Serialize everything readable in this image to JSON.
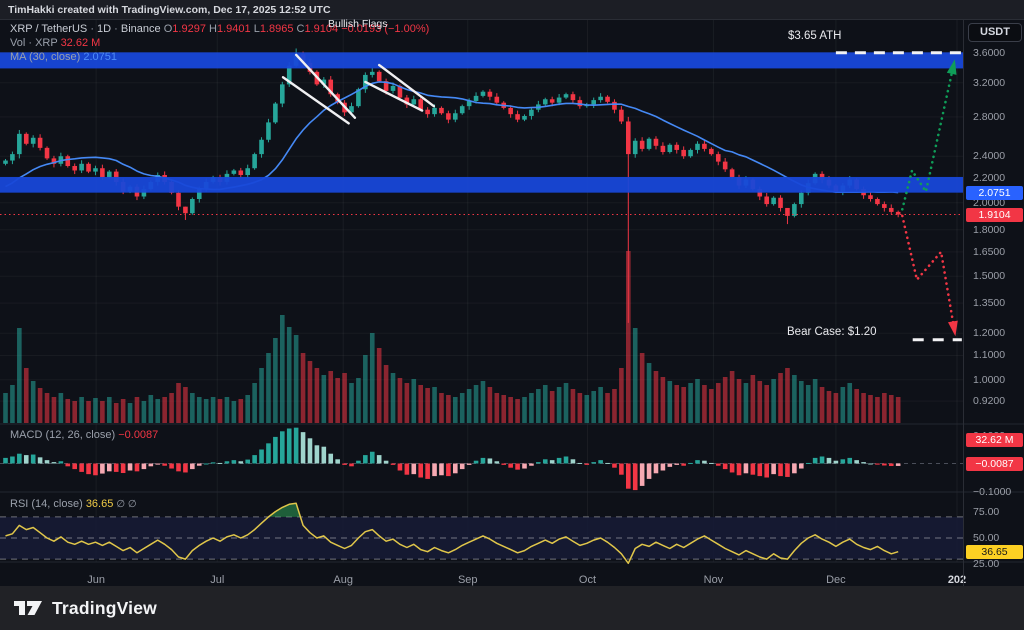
{
  "header": {
    "attribution": "TimHakki created with TradingView.com, Dec 17, 2025 12:52 UTC"
  },
  "legend": {
    "symbol": "XRP / TetherUS",
    "sep1": "·",
    "interval": "1D",
    "sep2": "·",
    "exchange": "Binance",
    "o_label": "O",
    "o": "1.9297",
    "h_label": "H",
    "h": "1.9401",
    "l_label": "L",
    "l": "1.8965",
    "c_label": "C",
    "c": "1.9104",
    "change": "−0.0193 (−1.00%)",
    "vol_label": "Vol · XRP",
    "vol_value": "32.62 M",
    "ma_label": "MA (30, close)",
    "ma_value": "2.0751"
  },
  "annotations": {
    "bullish_flags": "Bullish Flags",
    "ath_label": "$3.65 ATH",
    "bear_label": "Bear Case: $1.20"
  },
  "axis": {
    "currency_button": "USDT",
    "price_ticks": [
      "3.6000",
      "3.2000",
      "2.8000",
      "2.4000",
      "2.2000",
      "2.0000",
      "1.8000",
      "1.6500",
      "1.5000",
      "1.3500",
      "1.2000",
      "1.1000",
      "1.0000",
      "0.9200"
    ],
    "macd_tick_top": "0.1000",
    "macd_tick_bottom": "−0.1000",
    "rsi_ticks": [
      "75.00",
      "50.00",
      "25.00"
    ],
    "chips": {
      "ma": "2.0751",
      "last": "1.9104",
      "vol": "32.62 M",
      "macd": "−0.0087",
      "rsi": "36.65"
    }
  },
  "time_axis": {
    "months": [
      "Jun",
      "Jul",
      "Aug",
      "Sep",
      "Oct",
      "Nov",
      "Dec"
    ],
    "year_partial": "202"
  },
  "panes": {
    "macd_legend": "MACD (12, 26, close)",
    "macd_value": "−0.0087",
    "rsi_legend": "RSI (14, close)",
    "rsi_value": "36.65",
    "rsi_icons": "∅ ∅"
  },
  "footer": {
    "brand": "TradingView"
  },
  "colors": {
    "up": "#26a69a",
    "down": "#f23645",
    "ma_line": "#4589f5",
    "zone_blue": "#1848d8",
    "proj_up": "#0f9d58",
    "proj_down": "#f23645",
    "rsi_line": "#e0c64a",
    "chip_ma": "#2962ff",
    "chip_red": "#f23645",
    "chip_yellow": "#fdd023",
    "macd_pos_grow": "#26a69a",
    "macd_pos_fall": "#9fd4cc",
    "macd_neg_fall": "#f23645",
    "macd_neg_grow": "#f6a9b2"
  },
  "chart_data": {
    "type": "candlestick",
    "title": "XRP / TetherUS · 1D · Binance",
    "x_range": "2025-05-10 to 2025-12-17 (approximated at ~1.7-day candle resolution)",
    "y_scale": "log",
    "ylim": [
      0.88,
      3.75
    ],
    "last": {
      "open": 1.9297,
      "high": 1.9401,
      "low": 1.8965,
      "close": 1.9104,
      "change": -0.0193,
      "change_pct": -1.0,
      "volume": "32.62M",
      "ma30": 2.0751,
      "macd_hist": -0.0087,
      "rsi14": 36.65
    },
    "closes": [
      2.36,
      2.42,
      2.62,
      2.52,
      2.58,
      2.48,
      2.38,
      2.33,
      2.4,
      2.31,
      2.27,
      2.33,
      2.26,
      2.29,
      2.21,
      2.26,
      2.17,
      2.09,
      2.13,
      2.05,
      2.11,
      2.17,
      2.23,
      2.17,
      2.08,
      1.97,
      1.92,
      2.03,
      2.11,
      2.17,
      2.21,
      2.17,
      2.24,
      2.27,
      2.23,
      2.29,
      2.42,
      2.56,
      2.74,
      2.95,
      3.18,
      3.42,
      3.58,
      3.46,
      3.34,
      3.18,
      3.24,
      3.06,
      2.96,
      2.85,
      2.92,
      3.12,
      3.3,
      3.34,
      3.22,
      3.1,
      3.16,
      3.02,
      2.94,
      3.0,
      2.88,
      2.83,
      2.9,
      2.84,
      2.77,
      2.84,
      2.92,
      2.98,
      3.04,
      3.09,
      3.03,
      2.96,
      2.9,
      2.83,
      2.77,
      2.81,
      2.88,
      2.94,
      3.0,
      2.96,
      3.02,
      3.06,
      2.99,
      2.92,
      2.94,
      2.99,
      3.03,
      2.97,
      2.88,
      2.75,
      2.42,
      2.55,
      2.47,
      2.57,
      2.5,
      2.44,
      2.51,
      2.46,
      2.4,
      2.46,
      2.52,
      2.47,
      2.42,
      2.35,
      2.28,
      2.21,
      2.14,
      2.19,
      2.11,
      2.05,
      1.99,
      2.04,
      1.96,
      1.9,
      1.99,
      2.08,
      2.16,
      2.24,
      2.19,
      2.14,
      2.09,
      2.14,
      2.19,
      2.11,
      2.06,
      2.03,
      1.99,
      1.96,
      1.93,
      1.91
    ],
    "first_open": 2.33,
    "wick_overrides": {
      "2": [
        2.66,
        2.38
      ],
      "26": [
        1.97,
        1.87
      ],
      "42": [
        3.66,
        3.4
      ],
      "90": [
        2.8,
        1.25
      ],
      "113": [
        1.95,
        1.84
      ],
      "129": [
        1.94,
        1.89
      ]
    },
    "volumes": [
      30,
      38,
      95,
      55,
      42,
      35,
      30,
      26,
      30,
      24,
      22,
      26,
      22,
      25,
      22,
      26,
      20,
      24,
      20,
      26,
      22,
      28,
      24,
      26,
      30,
      40,
      36,
      30,
      26,
      24,
      26,
      24,
      26,
      22,
      24,
      28,
      40,
      55,
      70,
      85,
      108,
      96,
      88,
      70,
      62,
      55,
      48,
      52,
      45,
      50,
      40,
      45,
      68,
      90,
      75,
      58,
      50,
      45,
      40,
      44,
      38,
      35,
      36,
      30,
      28,
      26,
      30,
      34,
      38,
      42,
      36,
      30,
      28,
      26,
      24,
      26,
      30,
      34,
      38,
      32,
      36,
      40,
      34,
      30,
      28,
      32,
      36,
      30,
      34,
      55,
      172,
      95,
      70,
      60,
      52,
      46,
      42,
      38,
      36,
      40,
      44,
      38,
      34,
      40,
      46,
      52,
      44,
      40,
      48,
      42,
      38,
      44,
      50,
      55,
      48,
      42,
      38,
      44,
      36,
      32,
      30,
      36,
      40,
      34,
      30,
      28,
      26,
      30,
      28,
      26
    ],
    "volume_note": "relative units; tallest bar = Oct 10 crash; latest bar 32.62M",
    "ma_seed": [
      1.95,
      1.98,
      2.0,
      2.02,
      2.05,
      2.08,
      2.1,
      2.12,
      2.15,
      2.18,
      2.2,
      2.22,
      2.25,
      2.3
    ],
    "macd_hist": [
      0.02,
      0.025,
      0.035,
      0.03,
      0.032,
      0.022,
      0.012,
      0.005,
      0.008,
      -0.01,
      -0.02,
      -0.03,
      -0.038,
      -0.042,
      -0.036,
      -0.028,
      -0.03,
      -0.034,
      -0.025,
      -0.028,
      -0.02,
      -0.01,
      -0.004,
      -0.008,
      -0.018,
      -0.028,
      -0.032,
      -0.02,
      -0.008,
      0.0,
      0.004,
      0.002,
      0.008,
      0.012,
      0.008,
      0.014,
      0.03,
      0.05,
      0.072,
      0.095,
      0.115,
      0.125,
      0.128,
      0.112,
      0.09,
      0.065,
      0.06,
      0.035,
      0.015,
      -0.005,
      -0.01,
      0.01,
      0.03,
      0.042,
      0.03,
      0.01,
      -0.005,
      -0.025,
      -0.04,
      -0.038,
      -0.05,
      -0.055,
      -0.045,
      -0.042,
      -0.045,
      -0.035,
      -0.02,
      -0.005,
      0.01,
      0.02,
      0.018,
      0.008,
      -0.005,
      -0.015,
      -0.022,
      -0.018,
      -0.008,
      0.005,
      0.015,
      0.012,
      0.02,
      0.025,
      0.015,
      0.002,
      -0.005,
      0.005,
      0.012,
      0.002,
      -0.015,
      -0.04,
      -0.09,
      -0.095,
      -0.08,
      -0.055,
      -0.035,
      -0.025,
      -0.012,
      -0.005,
      -0.008,
      0.002,
      0.012,
      0.01,
      0.002,
      -0.008,
      -0.02,
      -0.032,
      -0.042,
      -0.035,
      -0.04,
      -0.045,
      -0.05,
      -0.038,
      -0.045,
      -0.048,
      -0.035,
      -0.018,
      0.002,
      0.02,
      0.025,
      0.02,
      0.01,
      0.015,
      0.02,
      0.012,
      0.005,
      0.0,
      -0.004,
      -0.007,
      -0.009,
      -0.0087
    ],
    "rsi": [
      52,
      54,
      62,
      58,
      60,
      55,
      50,
      47,
      51,
      46,
      44,
      47,
      44,
      46,
      43,
      46,
      42,
      38,
      41,
      36,
      40,
      44,
      48,
      44,
      39,
      32,
      30,
      38,
      43,
      47,
      50,
      47,
      51,
      53,
      50,
      53,
      58,
      64,
      70,
      75,
      79,
      82,
      83,
      62,
      55,
      50,
      52,
      46,
      43,
      40,
      43,
      50,
      56,
      58,
      52,
      47,
      49,
      44,
      41,
      44,
      39,
      37,
      41,
      38,
      36,
      39,
      43,
      46,
      49,
      52,
      49,
      45,
      42,
      39,
      36,
      38,
      42,
      45,
      48,
      45,
      49,
      51,
      47,
      43,
      45,
      48,
      50,
      46,
      41,
      35,
      26,
      40,
      44,
      42,
      46,
      43,
      40,
      44,
      41,
      45,
      49,
      52,
      48,
      44,
      40,
      37,
      34,
      38,
      35,
      32,
      30,
      35,
      31,
      30,
      38,
      45,
      50,
      53,
      49,
      46,
      42,
      46,
      49,
      44,
      41,
      39,
      42,
      38,
      35,
      37
    ],
    "levels": {
      "ath_line": {
        "price": 3.6,
        "from_i": 120.0,
        "to_i": 138.2
      },
      "bear_line": {
        "price": 1.17,
        "from_i": 131.1,
        "to_i": 138.2
      },
      "last_price": 1.9104,
      "supply_zone": [
        3.385,
        3.605
      ],
      "demand_zone": [
        2.081,
        2.213
      ]
    },
    "flag_lines": [
      {
        "from": [
          42.0,
          3.57
        ],
        "to": [
          50.5,
          2.79
        ]
      },
      {
        "from": [
          40.1,
          3.27
        ],
        "to": [
          49.6,
          2.73
        ]
      },
      {
        "from": [
          54.0,
          3.43
        ],
        "to": [
          61.9,
          2.92
        ]
      },
      {
        "from": [
          52.0,
          3.21
        ],
        "to": [
          60.2,
          2.87
        ]
      }
    ],
    "projections": {
      "bull": [
        [
          129.6,
          1.95
        ],
        [
          131.0,
          2.27
        ],
        [
          133.0,
          2.09
        ],
        [
          137.1,
          3.47
        ]
      ],
      "bear": [
        [
          129.6,
          1.9
        ],
        [
          131.7,
          1.48
        ],
        [
          135.2,
          1.65
        ],
        [
          137.2,
          1.2
        ]
      ]
    },
    "rsi_guides": [
      70,
      50,
      30
    ],
    "macd_zero": 0
  }
}
